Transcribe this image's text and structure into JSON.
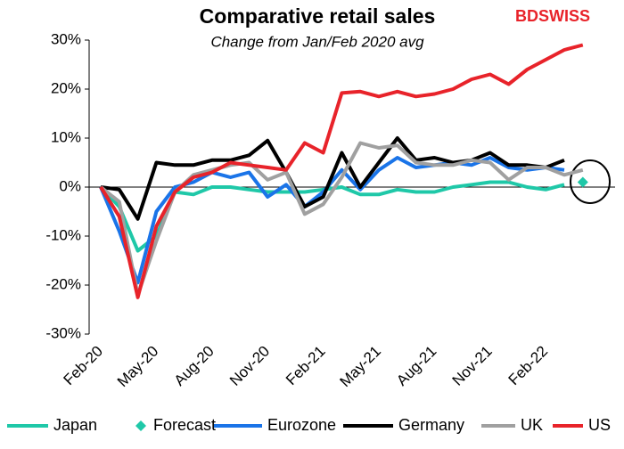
{
  "chart_data": {
    "type": "line",
    "title": "Comparative retail sales",
    "subtitle": "Change from Jan/Feb 2020 avg",
    "logo": "BDSWISS",
    "categories": [
      "Feb-20",
      null,
      null,
      "May-20",
      null,
      null,
      "Aug-20",
      null,
      null,
      "Nov-20",
      null,
      null,
      "Feb-21",
      null,
      null,
      "May-21",
      null,
      null,
      "Aug-21",
      null,
      null,
      "Nov-21",
      null,
      null,
      "Feb-22",
      null,
      null
    ],
    "series": [
      {
        "name": "Japan",
        "color": "#1fc8a8",
        "values": [
          0,
          -4,
          -13,
          -10,
          -1,
          -1.5,
          0,
          0,
          -0.5,
          -1,
          -1,
          -1,
          -0.5,
          0,
          -1.5,
          -1.5,
          -0.5,
          -1,
          -1,
          0,
          0.5,
          1,
          1,
          0,
          -0.5,
          0.5,
          null
        ]
      },
      {
        "name": "Forecast",
        "color": "#1fc8a8",
        "marker": "diamond",
        "values": [
          null,
          null,
          null,
          null,
          null,
          null,
          null,
          null,
          null,
          null,
          null,
          null,
          null,
          null,
          null,
          null,
          null,
          null,
          null,
          null,
          null,
          null,
          null,
          null,
          null,
          null,
          1
        ]
      },
      {
        "name": "Eurozone",
        "color": "#1a74e8",
        "values": [
          0,
          -9,
          -19.5,
          -5,
          0,
          1,
          3,
          2,
          3,
          -2,
          0.5,
          -4,
          -1,
          3.5,
          -0.5,
          3.5,
          6,
          4,
          4.5,
          5,
          4.5,
          6,
          4,
          3.5,
          4,
          3.5,
          null
        ]
      },
      {
        "name": "Germany",
        "color": "#000000",
        "values": [
          0,
          -0.5,
          -6.5,
          5,
          4.5,
          4.5,
          5.5,
          5.5,
          6.5,
          9.5,
          3,
          -4,
          -2,
          7,
          0,
          5,
          10,
          5.5,
          6,
          5,
          5.5,
          7,
          4.5,
          4.5,
          4,
          5.5,
          null
        ]
      },
      {
        "name": "UK",
        "color": "#a0a0a0",
        "values": [
          0,
          -3,
          -22,
          -11,
          -1,
          2.5,
          3.5,
          4.5,
          5,
          1.5,
          3,
          -5.5,
          -3.5,
          2,
          9,
          8,
          8.5,
          5,
          4.5,
          4.5,
          5.5,
          5,
          1.5,
          4,
          4,
          2.5,
          3.5
        ]
      },
      {
        "name": "US",
        "color": "#e8232a",
        "values": [
          0,
          -6,
          -22.5,
          -8,
          -1,
          2,
          3,
          5,
          4.5,
          4,
          3.5,
          9,
          7,
          19.2,
          19.5,
          18.5,
          19.5,
          18.5,
          19,
          20,
          22,
          23,
          21,
          24,
          26,
          28,
          29
        ]
      }
    ],
    "ylim": [
      -30,
      30
    ],
    "yticks": [
      {
        "value": -30,
        "label": "-30%"
      },
      {
        "value": -20,
        "label": "-20%"
      },
      {
        "value": -10,
        "label": "-10%"
      },
      {
        "value": 0,
        "label": "0%"
      },
      {
        "value": 10,
        "label": "10%"
      },
      {
        "value": 20,
        "label": "20%"
      },
      {
        "value": 30,
        "label": "30%"
      }
    ],
    "grid": false,
    "legend": "bottom"
  }
}
